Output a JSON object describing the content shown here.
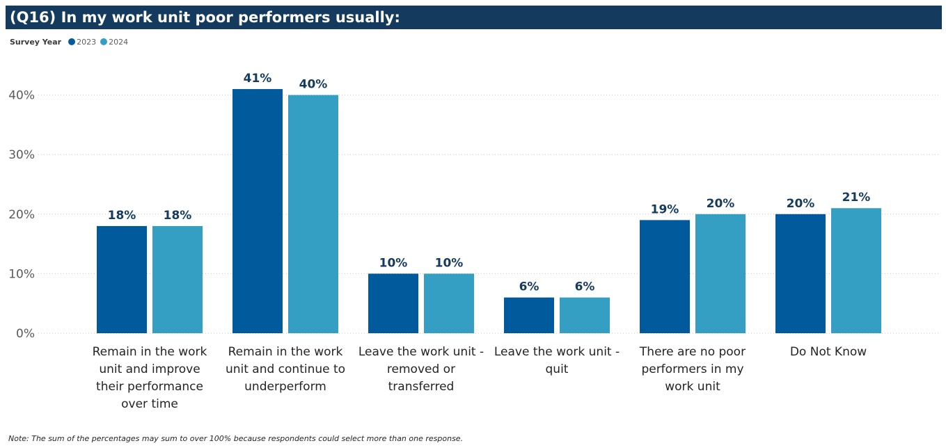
{
  "header": {
    "title": "(Q16) In my work unit poor performers usually:"
  },
  "legend": {
    "title": "Survey Year"
  },
  "note": "Note: The sum of the percentages may sum to over 100% because respondents could select more than one response.",
  "chart_data": {
    "type": "bar",
    "title": "(Q16) In my work unit poor performers usually:",
    "categories": [
      "Remain in the work unit and improve their performance over time",
      "Remain in the work unit and continue to underperform",
      "Leave the work unit - removed or transferred",
      "Leave the work unit - quit",
      "There are no poor performers in my work unit",
      "Do Not Know"
    ],
    "category_lines": [
      [
        "Remain in the work",
        "unit and improve",
        "their performance",
        "over time"
      ],
      [
        "Remain in the work",
        "unit and continue to",
        "underperform"
      ],
      [
        "Leave the work unit -",
        "removed or",
        "transferred"
      ],
      [
        "Leave the work unit -",
        "quit"
      ],
      [
        "There are no poor",
        "performers in my",
        "work unit"
      ],
      [
        "Do Not Know"
      ]
    ],
    "series": [
      {
        "name": "2023",
        "color": "#005a9b",
        "values": [
          18,
          41,
          10,
          6,
          19,
          20
        ]
      },
      {
        "name": "2024",
        "color": "#359ec3",
        "values": [
          18,
          40,
          10,
          6,
          20,
          21
        ]
      }
    ],
    "value_suffix": "%",
    "yticks": [
      0,
      10,
      20,
      30,
      40
    ],
    "ytick_labels": [
      "0%",
      "10%",
      "20%",
      "30%",
      "40%"
    ],
    "ylim": [
      0,
      41
    ],
    "legend_position": "top-left",
    "grid": true
  }
}
